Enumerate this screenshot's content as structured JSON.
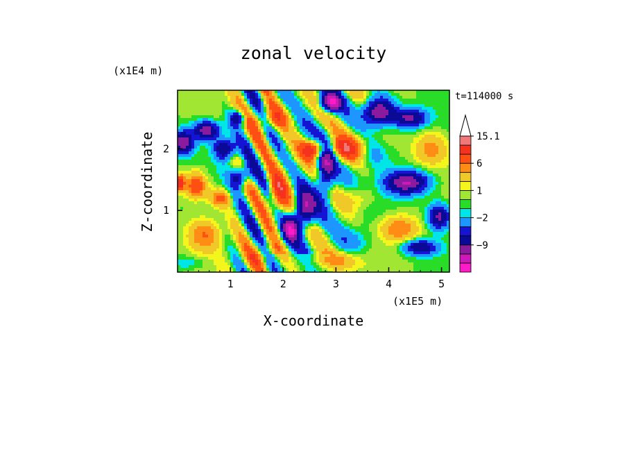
{
  "chart_data": {
    "type": "heatmap",
    "title": "zonal velocity",
    "xlabel": "X-coordinate",
    "ylabel": "Z-coordinate",
    "x_unit_label": "(x1E5 m)",
    "y_unit_label": "(x1E4 m)",
    "time_label": "t=114000 s",
    "xlim": [
      0,
      5.15
    ],
    "ylim": [
      0,
      2.95
    ],
    "x_ticks": [
      {
        "value": 1,
        "label": "1"
      },
      {
        "value": 2,
        "label": "2"
      },
      {
        "value": 3,
        "label": "3"
      },
      {
        "value": 4,
        "label": "4"
      },
      {
        "value": 5,
        "label": "5"
      }
    ],
    "y_ticks": [
      {
        "value": 1,
        "label": "1"
      },
      {
        "value": 2,
        "label": "2"
      }
    ],
    "grid": false,
    "colorbar": {
      "position": "right",
      "open_ended_top": true,
      "levels": [
        -15,
        -12,
        -9,
        -6,
        -4,
        -2,
        -1,
        0,
        1,
        2,
        4,
        6,
        9,
        12,
        15.1
      ],
      "colors": [
        "#ff1cc8",
        "#cc1ab8",
        "#8a1a9e",
        "#0a0a96",
        "#1414d2",
        "#1e96ff",
        "#00e6e6",
        "#28dc28",
        "#a0e632",
        "#f5f51e",
        "#f0c828",
        "#ff8c14",
        "#ff5014",
        "#f5321e",
        "#f07878",
        "#fac8c8"
      ],
      "tick_labels": [
        {
          "value": 15.1,
          "label": "15.1"
        },
        {
          "value": 6,
          "label": "6"
        },
        {
          "value": 1,
          "label": "1"
        },
        {
          "value": -2,
          "label": "−2"
        },
        {
          "value": -9,
          "label": "−9"
        }
      ]
    }
  }
}
